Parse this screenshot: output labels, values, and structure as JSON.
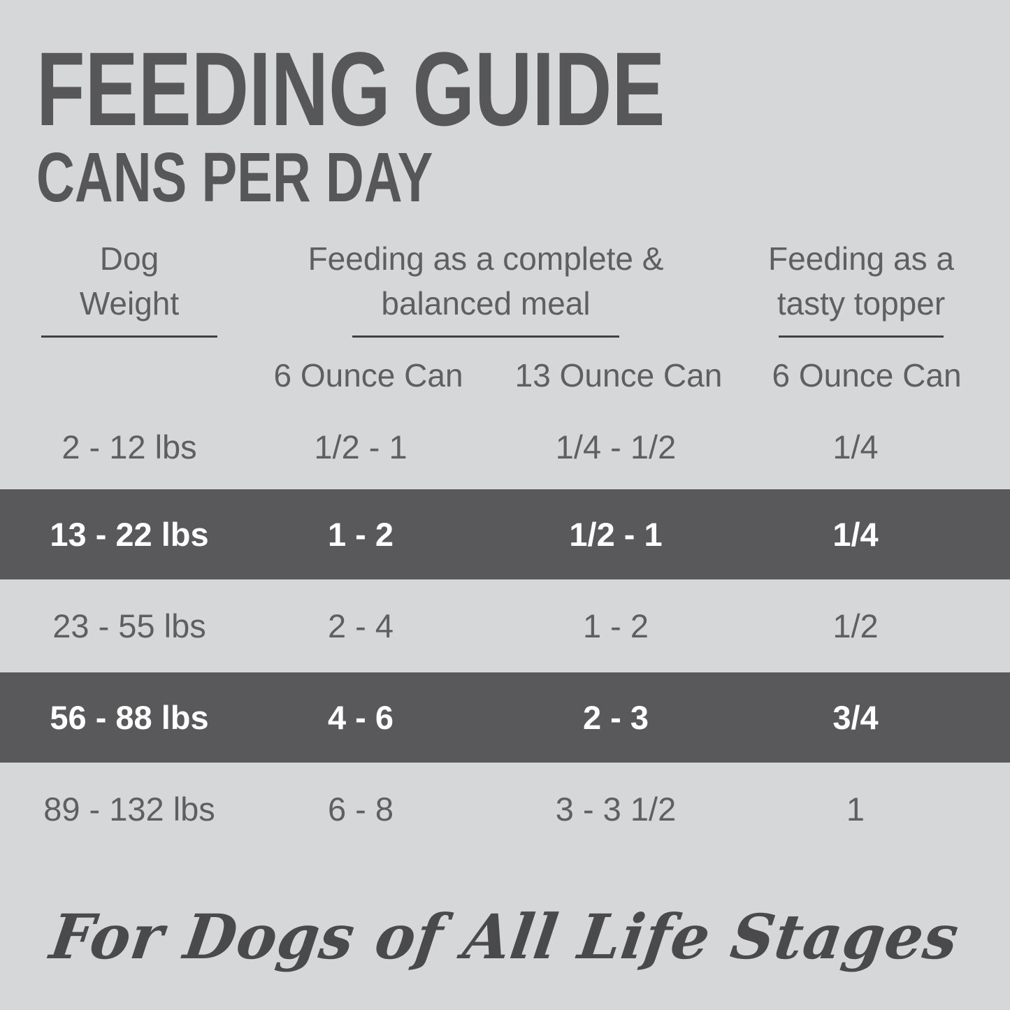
{
  "header": {
    "title": "FEEDING GUIDE",
    "subtitle": "CANS PER DAY"
  },
  "table": {
    "col_weight_label": "Dog Weight",
    "col_meal_label": "Feeding as a complete & balanced meal",
    "col_topper_label": "Feeding as a tasty topper",
    "sub_meal_small": "6 Ounce Can",
    "sub_meal_large": "13 Ounce Can",
    "sub_topper": "6 Ounce Can"
  },
  "footer": {
    "tagline": "For Dogs of All Life Stages"
  },
  "colors": {
    "background": "#d6d7d9",
    "highlight_band": "#59595b",
    "text": "#5e5f61",
    "title_text": "#57575a",
    "band_text": "#ffffff",
    "underline": "#414143"
  },
  "chart_data": {
    "type": "table",
    "title": "Feeding Guide — Cans Per Day",
    "columns": [
      "Dog Weight",
      "Feeding as a complete & balanced meal — 6 Ounce Can",
      "Feeding as a complete & balanced meal — 13 Ounce Can",
      "Feeding as a tasty topper — 6 Ounce Can"
    ],
    "rows": [
      [
        "2 - 12 lbs",
        "1/2 - 1",
        "1/4 - 1/2",
        "1/4"
      ],
      [
        "13 - 22 lbs",
        "1 - 2",
        "1/2 - 1",
        "1/4"
      ],
      [
        "23 - 55 lbs",
        "2 - 4",
        "1 - 2",
        "1/2"
      ],
      [
        "56 - 88 lbs",
        "4 - 6",
        "2 - 3",
        "3/4"
      ],
      [
        "89 - 132 lbs",
        "6 - 8",
        "3 - 3 1/2",
        "1"
      ]
    ],
    "highlighted_rows": [
      1,
      3
    ],
    "footnote": "For Dogs of All Life Stages"
  }
}
